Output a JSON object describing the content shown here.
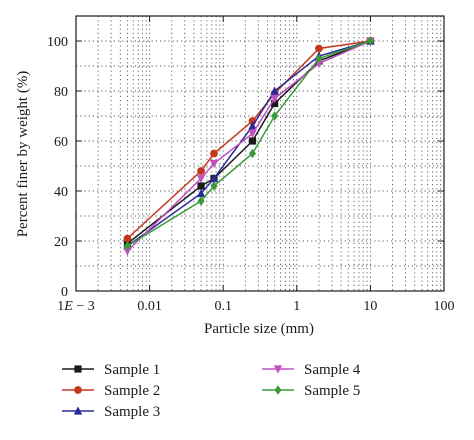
{
  "chart_data": {
    "type": "line",
    "xscale": "log",
    "xlabel": "Particle size (mm)",
    "ylabel": "Percent finer by weight (%)",
    "xlim": [
      0.001,
      100
    ],
    "ylim": [
      0,
      110
    ],
    "grid": true,
    "legend_position": "bottom",
    "x_ticks": [
      {
        "value": 0.001,
        "label_main": "1",
        "label_var": "E",
        "label_tail": " − 3"
      },
      {
        "value": 0.01,
        "label": "0.01"
      },
      {
        "value": 0.1,
        "label": "0.1"
      },
      {
        "value": 1,
        "label": "1"
      },
      {
        "value": 10,
        "label": "10"
      },
      {
        "value": 100,
        "label": "100"
      }
    ],
    "y_ticks": [
      {
        "value": 0,
        "label": "0"
      },
      {
        "value": 20,
        "label": "20"
      },
      {
        "value": 40,
        "label": "40"
      },
      {
        "value": 60,
        "label": "60"
      },
      {
        "value": 80,
        "label": "80"
      },
      {
        "value": 100,
        "label": "100"
      }
    ],
    "series": [
      {
        "name": "Sample 1",
        "color": "#1a1a1a",
        "marker": "square",
        "x": [
          0.005,
          0.05,
          0.075,
          0.25,
          0.5,
          2,
          10
        ],
        "y": [
          19,
          42,
          45,
          60,
          75,
          92,
          100
        ]
      },
      {
        "name": "Sample 2",
        "color": "#c4391d",
        "marker": "circle",
        "x": [
          0.005,
          0.05,
          0.075,
          0.25,
          0.5,
          2,
          10
        ],
        "y": [
          21,
          48,
          55,
          68,
          79,
          97,
          100
        ]
      },
      {
        "name": "Sample 3",
        "color": "#2a2a9a",
        "marker": "triangle-up",
        "x": [
          0.005,
          0.05,
          0.075,
          0.25,
          0.5,
          2,
          10
        ],
        "y": [
          18,
          39,
          45,
          66,
          80,
          94,
          100
        ]
      },
      {
        "name": "Sample 4",
        "color": "#c050c0",
        "marker": "triangle-down",
        "x": [
          0.005,
          0.05,
          0.075,
          0.25,
          0.5,
          2,
          10
        ],
        "y": [
          16,
          45,
          51,
          63,
          77,
          91,
          100
        ]
      },
      {
        "name": "Sample 5",
        "color": "#3a9a3a",
        "marker": "diamond",
        "x": [
          0.005,
          0.05,
          0.075,
          0.25,
          0.5,
          2,
          10
        ],
        "y": [
          18,
          36,
          42,
          55,
          70,
          93,
          100
        ]
      }
    ]
  }
}
